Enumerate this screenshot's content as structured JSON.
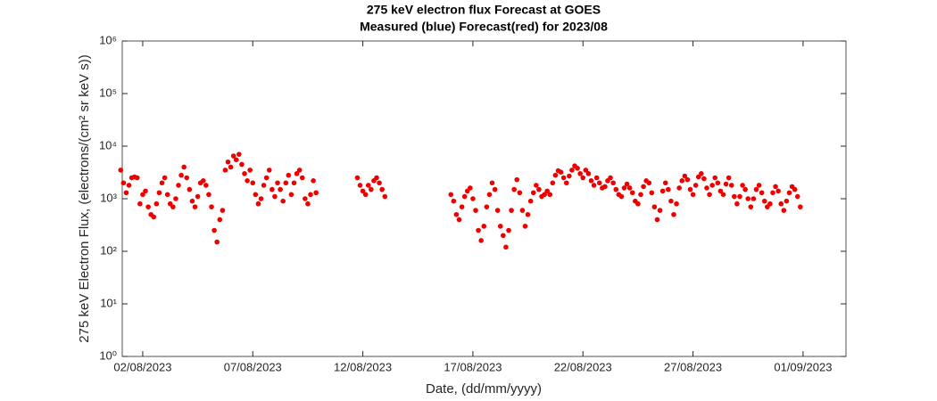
{
  "chart_data": {
    "type": "scatter",
    "title": "275 keV electron flux Forecast at GOES",
    "subtitle": "Measured (blue) Forecast(red) for 2023/08",
    "x_label": "Date, (dd/mm/yyyy)",
    "y_label": "275 keV Electron Flux, (electrons/(cm² sr keV s))",
    "color": "#ee0000",
    "log_y": true,
    "xlim": [
      1.07,
      33.95
    ],
    "xticks": [
      {
        "value": 2,
        "label": "02/08/2023"
      },
      {
        "value": 7,
        "label": "07/08/2023"
      },
      {
        "value": 12,
        "label": "12/08/2023"
      },
      {
        "value": 17,
        "label": "17/08/2023"
      },
      {
        "value": 22,
        "label": "22/08/2023"
      },
      {
        "value": 27,
        "label": "27/08/2023"
      },
      {
        "value": 32,
        "label": "01/09/2023"
      }
    ],
    "ylim": [
      1,
      1000000
    ],
    "yticks": [
      {
        "value": 1,
        "label": "10⁰"
      },
      {
        "value": 10,
        "label": "10¹"
      },
      {
        "value": 100,
        "label": "10²"
      },
      {
        "value": 1000,
        "label": "10³"
      },
      {
        "value": 10000,
        "label": "10⁴"
      },
      {
        "value": 100000,
        "label": "10⁵"
      },
      {
        "value": 1000000,
        "label": "10⁶"
      }
    ],
    "x": [
      1,
      1.125,
      1.25,
      1.375,
      1.5,
      1.625,
      1.75,
      1.875,
      2,
      2.125,
      2.25,
      2.375,
      2.5,
      2.625,
      2.75,
      2.875,
      3,
      3.125,
      3.25,
      3.375,
      3.5,
      3.625,
      3.75,
      3.875,
      4,
      4.125,
      4.25,
      4.375,
      4.5,
      4.625,
      4.75,
      4.875,
      5,
      5.125,
      5.25,
      5.375,
      5.5,
      5.625,
      5.75,
      5.875,
      6,
      6.125,
      6.25,
      6.375,
      6.5,
      6.625,
      6.75,
      6.875,
      7,
      7.125,
      7.25,
      7.375,
      7.5,
      7.625,
      7.75,
      7.875,
      8,
      8.125,
      8.25,
      8.375,
      8.5,
      8.625,
      8.75,
      8.875,
      9,
      9.125,
      9.25,
      9.375,
      9.5,
      9.625,
      9.75,
      9.875,
      11.75,
      11.875,
      12,
      12.125,
      12.25,
      12.375,
      12.5,
      12.625,
      12.75,
      12.875,
      13,
      16,
      16.125,
      16.25,
      16.375,
      16.5,
      16.625,
      16.75,
      16.875,
      17,
      17.125,
      17.25,
      17.375,
      17.5,
      17.625,
      17.75,
      17.875,
      18,
      18.125,
      18.25,
      18.375,
      18.5,
      18.625,
      18.75,
      18.875,
      19,
      19.125,
      19.25,
      19.375,
      19.5,
      19.625,
      19.75,
      19.875,
      20,
      20.125,
      20.25,
      20.375,
      20.5,
      20.625,
      20.75,
      20.875,
      21,
      21.125,
      21.25,
      21.375,
      21.5,
      21.625,
      21.75,
      21.875,
      22,
      22.125,
      22.25,
      22.375,
      22.5,
      22.625,
      22.75,
      22.875,
      23,
      23.125,
      23.25,
      23.375,
      23.5,
      23.625,
      23.75,
      23.875,
      24,
      24.125,
      24.25,
      24.375,
      24.5,
      24.625,
      24.75,
      24.875,
      25,
      25.125,
      25.25,
      25.375,
      25.5,
      25.625,
      25.75,
      25.875,
      26,
      26.125,
      26.25,
      26.375,
      26.5,
      26.625,
      26.75,
      26.875,
      27,
      27.125,
      27.25,
      27.375,
      27.5,
      27.625,
      27.75,
      27.875,
      28,
      28.125,
      28.25,
      28.375,
      28.5,
      28.625,
      28.75,
      28.875,
      29,
      29.125,
      29.25,
      29.375,
      29.5,
      29.625,
      29.75,
      29.875,
      30,
      30.125,
      30.25,
      30.375,
      30.5,
      30.625,
      30.75,
      30.875,
      31,
      31.125,
      31.25,
      31.375,
      31.5,
      31.625,
      31.75,
      31.875
    ],
    "values": [
      3500,
      2000,
      1300,
      1800,
      2500,
      2600,
      2500,
      800,
      1200,
      1400,
      700,
      500,
      450,
      800,
      1300,
      2000,
      2500,
      1200,
      800,
      700,
      1000,
      1800,
      2800,
      4000,
      2500,
      1500,
      900,
      700,
      1100,
      2000,
      2200,
      1800,
      1200,
      700,
      250,
      150,
      400,
      600,
      3500,
      5000,
      4000,
      6500,
      5500,
      7000,
      4500,
      3000,
      2200,
      3500,
      2000,
      1200,
      800,
      1000,
      1800,
      2500,
      3500,
      1500,
      1100,
      2000,
      1500,
      900,
      2000,
      2800,
      1200,
      2000,
      3000,
      3500,
      2500,
      1000,
      800,
      1200,
      2200,
      1300,
      2500,
      1800,
      1400,
      1200,
      1800,
      1500,
      2200,
      2500,
      2000,
      1500,
      1100,
      1200,
      900,
      500,
      400,
      700,
      1100,
      1400,
      1600,
      1000,
      600,
      250,
      160,
      300,
      700,
      1200,
      2000,
      1500,
      600,
      300,
      200,
      120,
      250,
      600,
      1500,
      2300,
      1300,
      600,
      300,
      500,
      900,
      1300,
      1800,
      1500,
      1100,
      1200,
      1400,
      1200,
      2000,
      2800,
      3400,
      3200,
      2500,
      2000,
      2700,
      3500,
      4200,
      3800,
      3000,
      2500,
      3500,
      3000,
      2200,
      1800,
      2500,
      2000,
      1600,
      1700,
      2200,
      2500,
      2000,
      1500,
      1200,
      1100,
      1600,
      1900,
      1600,
      1300,
      900,
      800,
      1200,
      1700,
      2200,
      2000,
      1300,
      700,
      400,
      600,
      1400,
      2000,
      1500,
      900,
      500,
      800,
      1600,
      2200,
      2700,
      2300,
      1500,
      1200,
      1800,
      2600,
      3000,
      2400,
      1600,
      1200,
      1800,
      2500,
      2000,
      1400,
      1200,
      1900,
      2500,
      1800,
      1100,
      800,
      1100,
      1800,
      1500,
      1000,
      700,
      1000,
      1500,
      1800,
      1300,
      900,
      700,
      800,
      1300,
      1700,
      1400,
      800,
      600,
      900,
      1300,
      1700,
      1500,
      1100,
      700
    ]
  }
}
